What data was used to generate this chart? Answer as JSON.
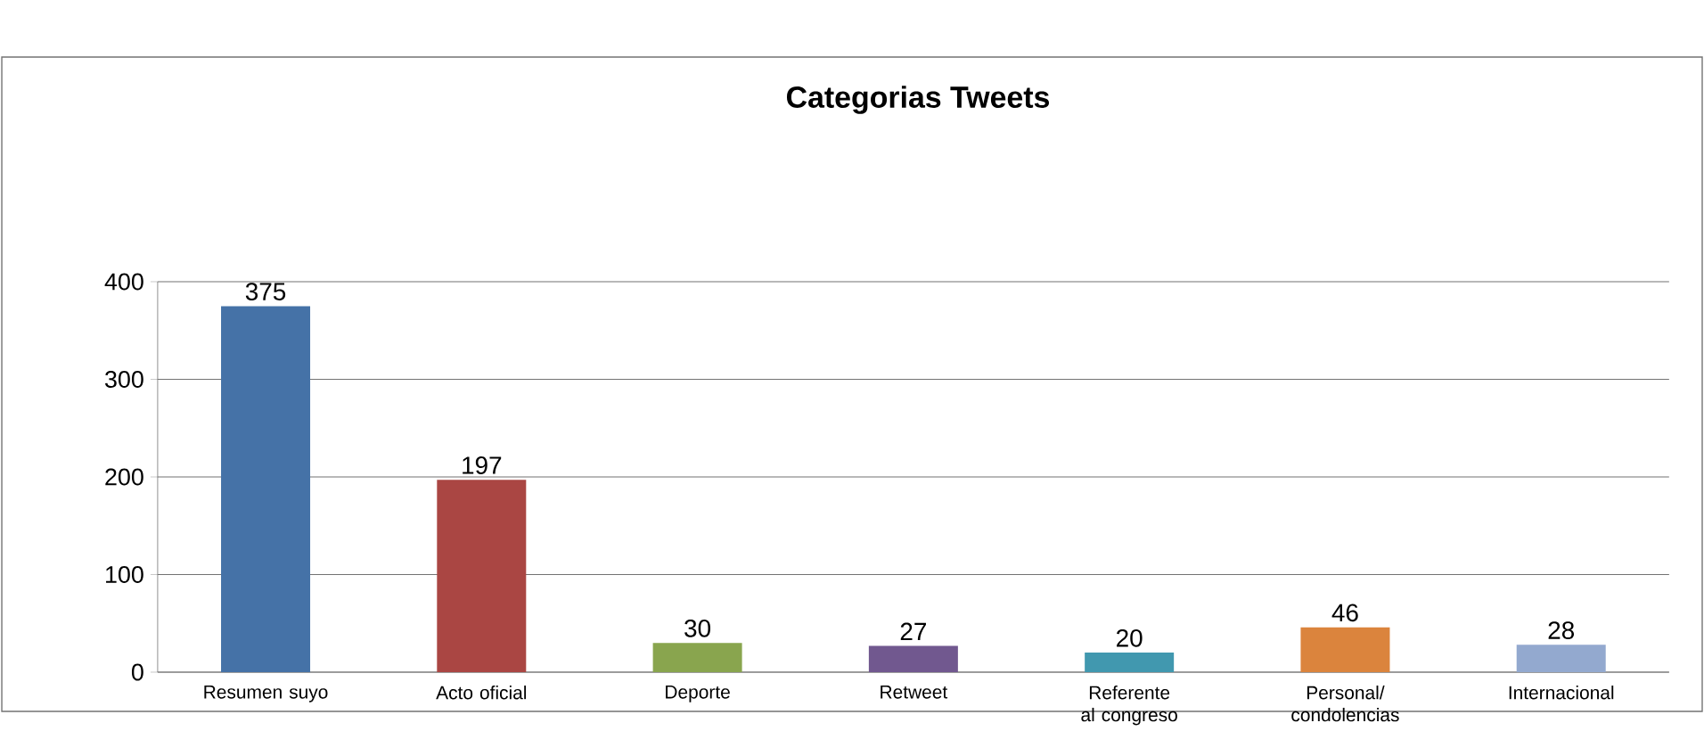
{
  "chart_data": {
    "type": "bar",
    "title": "Categorias Tweets",
    "categories": [
      "Resumen suyo",
      "Acto oficial",
      "Deporte",
      "Retweet",
      "Referente al congreso",
      "Personal/ condolencias",
      "Internacional"
    ],
    "values": [
      375,
      197,
      30,
      27,
      20,
      46,
      28
    ],
    "colors": [
      "#4572a7",
      "#aa4643",
      "#89a54e",
      "#71588f",
      "#4198af",
      "#db843d",
      "#93a9cf"
    ],
    "ylim": [
      0,
      400
    ],
    "yticks": [
      0,
      100,
      200,
      300,
      400
    ],
    "grid": "y",
    "data_labels": true
  }
}
